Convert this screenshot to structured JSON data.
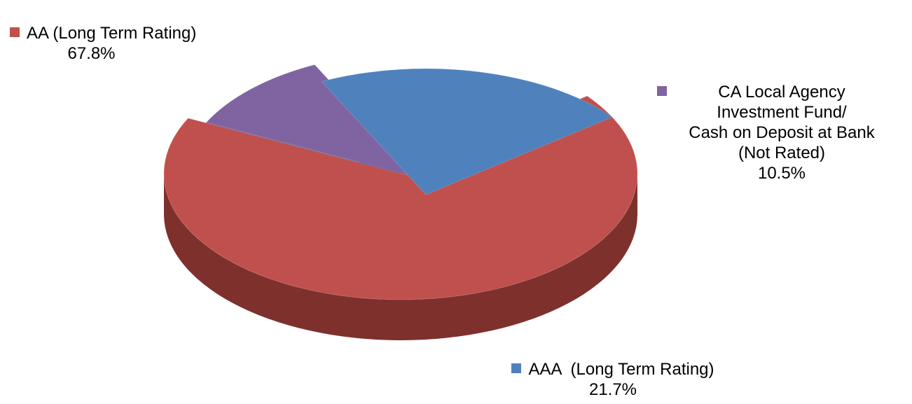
{
  "chart_data": {
    "type": "pie",
    "style": "3d-exploded",
    "legend": "none",
    "slices": [
      {
        "label": "AA (Long Term Rating)",
        "value": 67.8,
        "value_label": "67.8%",
        "color": "#c0504d",
        "side_color": "#7e302d"
      },
      {
        "label": "CA Local Agency\nInvestment Fund/\nCash on Deposit at Bank\n(Not Rated)",
        "value": 10.5,
        "value_label": "10.5%",
        "color": "#8064a2",
        "side_color": "#4f3c66"
      },
      {
        "label": "AAA  (Long Term Rating)",
        "value": 21.7,
        "value_label": "21.7%",
        "color": "#4f81bd",
        "side_color": "#223a56"
      }
    ]
  }
}
